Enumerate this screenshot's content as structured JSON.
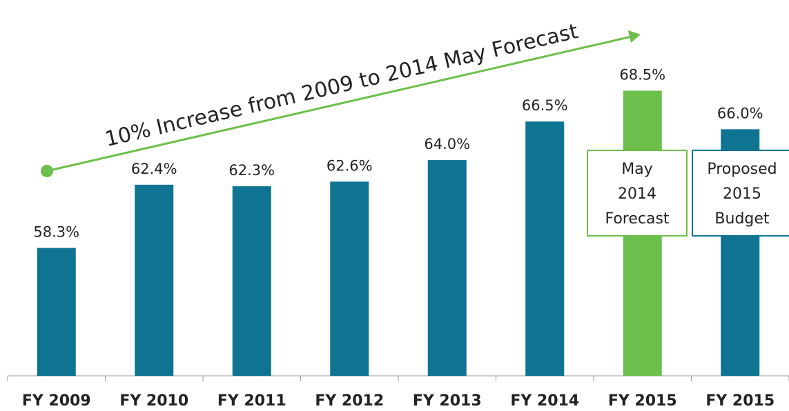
{
  "chart_data": {
    "type": "bar",
    "categories": [
      "FY 2009",
      "FY 2010",
      "FY 2011",
      "FY 2012",
      "FY 2013",
      "FY 2014",
      "FY 2015",
      "FY 2015"
    ],
    "values": [
      58.3,
      62.4,
      62.3,
      62.6,
      64.0,
      66.5,
      68.5,
      66.0
    ],
    "value_labels": [
      "58.3%",
      "62.4%",
      "62.3%",
      "62.6%",
      "64.0%",
      "66.5%",
      "68.5%",
      "66.0%"
    ],
    "colors": [
      "#0f7492",
      "#0f7492",
      "#0f7492",
      "#0f7492",
      "#0f7492",
      "#0f7492",
      "#6cbf4a",
      "#0f7492"
    ],
    "ylim": [
      50,
      70
    ],
    "annotations": [
      {
        "text": "10% Increase from 2009 to 2014 May Forecast",
        "color": "#6cbf4a"
      },
      {
        "lines": [
          "May",
          "2014",
          "Forecast"
        ],
        "color": "#6cbf4a"
      },
      {
        "lines": [
          "Proposed",
          "2015",
          "Budget"
        ],
        "color": "#0f7492"
      }
    ]
  }
}
